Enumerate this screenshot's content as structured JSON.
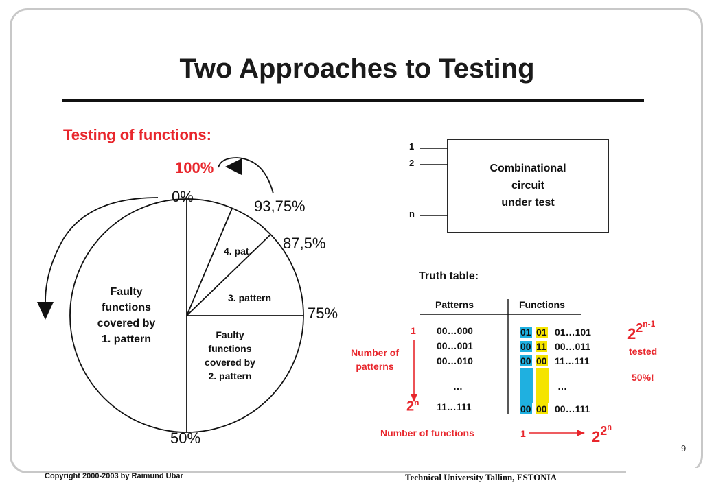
{
  "slide": {
    "title": "Two Approaches to Testing",
    "subtitle": "Testing of functions:",
    "page_number": "9",
    "copyright": "Copyright  2000-2003  by  Raimund Ubar",
    "institution": "Technical University Tallinn, ESTONIA"
  },
  "pie": {
    "top_label": "100%",
    "pct_0": "0%",
    "pct_9375": "93,75%",
    "pct_875": "87,5%",
    "pct_75": "75%",
    "pct_50": "50%",
    "seg1": [
      "Faulty",
      "functions",
      "covered by",
      "1. pattern"
    ],
    "seg2": [
      "Faulty",
      "functions",
      "covered by",
      "2. pattern"
    ],
    "seg3": "3. pattern",
    "seg4": "4. pat."
  },
  "circuit": {
    "box_lines": [
      "Combinational",
      "circuit",
      "under test"
    ],
    "input_1": "1",
    "input_2": "2",
    "input_n": "n"
  },
  "truth_table": {
    "heading": "Truth table:",
    "col_patterns": "Patterns",
    "col_functions": "Functions",
    "row_index_first": "1",
    "patterns": [
      "00…000",
      "00…001",
      "00…010",
      "…",
      "11…111"
    ],
    "func_col1": [
      "01",
      "00",
      "00",
      "00"
    ],
    "func_col2": [
      "01",
      "11",
      "00",
      "00"
    ],
    "func_rest": [
      "01…101",
      "00…011",
      "11…111",
      "…",
      "00…111"
    ],
    "num_patterns": [
      "Number of",
      "patterns"
    ],
    "num_functions": "Number of functions",
    "func_count_start": "1",
    "formula_base": "2",
    "formula_exp": "2",
    "formula_sup": "n",
    "pat_count_base": "2",
    "pat_count_sup": "n",
    "right_formula_exp": "2",
    "right_formula_sup": "n-1",
    "tested": "tested",
    "tested_pct": "50%!"
  }
}
